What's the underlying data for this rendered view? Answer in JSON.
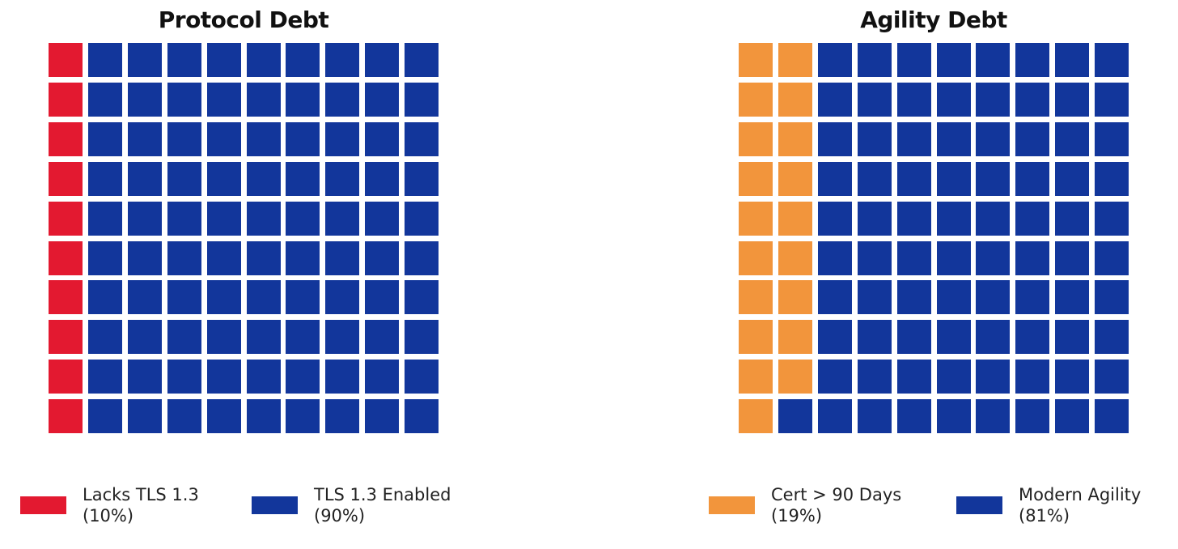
{
  "chart_data": [
    {
      "type": "waffle",
      "title": "Protocol Debt",
      "rows": 10,
      "cols": 10,
      "series": [
        {
          "name": "Lacks TLS 1.3",
          "value": 10,
          "percent_label": "(10%)",
          "color": "#e31930"
        },
        {
          "name": "TLS 1.3 Enabled",
          "value": 90,
          "percent_label": "(90%)",
          "color": "#12369b"
        }
      ]
    },
    {
      "type": "waffle",
      "title": "Agility Debt",
      "rows": 10,
      "cols": 10,
      "series": [
        {
          "name": "Cert > 90 Days",
          "value": 19,
          "percent_label": "(19%)",
          "color": "#f2953c"
        },
        {
          "name": "Modern Agility",
          "value": 81,
          "percent_label": "(81%)",
          "color": "#12369b"
        }
      ]
    }
  ]
}
